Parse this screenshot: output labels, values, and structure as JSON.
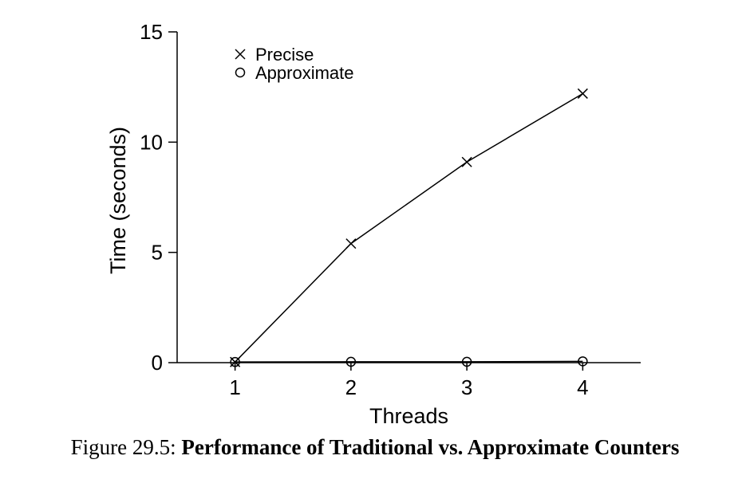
{
  "chart_data": {
    "type": "line",
    "xlabel": "Threads",
    "ylabel": "Time (seconds)",
    "x": [
      1,
      2,
      3,
      4
    ],
    "xticks": [
      "1",
      "2",
      "3",
      "4"
    ],
    "xlim": [
      0.5,
      4.5
    ],
    "yticks": [
      "0",
      "5",
      "10",
      "15"
    ],
    "ylim": [
      0,
      15
    ],
    "legend_position": "top-left",
    "grid": false,
    "series": [
      {
        "name": "Precise",
        "marker": "x",
        "values": [
          0.03,
          5.4,
          9.1,
          12.2
        ]
      },
      {
        "name": "Approximate",
        "marker": "o",
        "values": [
          0.03,
          0.04,
          0.04,
          0.06
        ]
      }
    ]
  },
  "caption": {
    "prefix": "Figure 29.5: ",
    "title": "Performance of Traditional vs. Approximate Counters"
  }
}
